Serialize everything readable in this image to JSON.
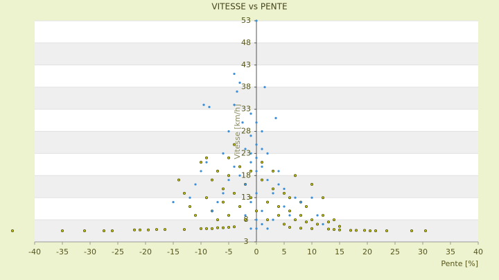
{
  "chart_data": {
    "type": "scatter",
    "title": "VITESSE vs PENTE",
    "x_label": "Pente [%]",
    "y_label": "Vitesse [km/h]",
    "xlim": [
      -40,
      40
    ],
    "ylim": [
      3,
      53
    ],
    "xticks": [
      -40,
      -35,
      -30,
      -25,
      -20,
      -15,
      -10,
      -5,
      0,
      5,
      10,
      15,
      20,
      25,
      30,
      35,
      40
    ],
    "yticks": [
      3,
      8,
      13,
      18,
      23,
      28,
      33,
      38,
      43,
      48,
      53
    ],
    "grid": true,
    "series": [
      {
        "color": "#c8c800",
        "x": [
          -44,
          -35,
          -31,
          -27.5,
          -26,
          -22,
          -21,
          -19.5,
          -18,
          -16.5,
          -13,
          -10,
          -9,
          -8,
          -7,
          -6,
          -5,
          -4,
          6,
          8,
          10,
          13,
          14,
          15,
          17,
          18,
          19.5,
          20.5,
          21.5,
          23.5,
          28,
          30.5,
          -14,
          -13,
          -12,
          -11,
          -10,
          -9,
          -9,
          -8,
          -8,
          -7,
          -7,
          -6,
          -6,
          -5,
          -5,
          -5,
          -4,
          -4,
          -3,
          -3,
          -2,
          -2,
          -1,
          -1,
          0,
          1,
          1,
          2,
          2,
          3,
          3,
          4,
          4,
          5,
          5,
          6,
          6,
          7,
          7,
          8,
          8,
          9,
          9,
          10,
          10,
          11,
          12,
          12,
          13,
          14,
          15
        ],
        "values": [
          5.5,
          5.5,
          5.5,
          5.5,
          5.5,
          5.7,
          5.7,
          5.7,
          5.8,
          5.8,
          5.8,
          6,
          6,
          6,
          6.2,
          6.2,
          6.3,
          6.4,
          6.3,
          6.1,
          6,
          5.9,
          5.8,
          5.7,
          5.6,
          5.6,
          5.6,
          5.5,
          5.5,
          5.5,
          5.5,
          5.5,
          17,
          14,
          11,
          9,
          21,
          22,
          13,
          10,
          17,
          8,
          19,
          15,
          12,
          22,
          9,
          18,
          14,
          25,
          11,
          20,
          16,
          8,
          19,
          13,
          10,
          17,
          21,
          12,
          8,
          15,
          19,
          11,
          9,
          14,
          7,
          10,
          13,
          8,
          18,
          9,
          12,
          7.5,
          11,
          8,
          16,
          7,
          9,
          13,
          7.5,
          8,
          6.5
        ]
      },
      {
        "color": "#3a8fd8",
        "x": [
          0,
          -4,
          -3,
          -3.5,
          1.5,
          -4,
          -9.5,
          -8.5,
          -2.5,
          3.5,
          -5,
          -1,
          0,
          -1,
          1,
          0,
          -2,
          2,
          -6,
          -9,
          -10,
          -11,
          -12,
          -15,
          -4,
          -3,
          -2,
          -1,
          0,
          1,
          2,
          3,
          4,
          5,
          6,
          7,
          8,
          10,
          11,
          12,
          -1,
          0,
          1,
          -2,
          0,
          1,
          -1,
          0,
          2,
          3,
          -6,
          -5,
          -7,
          -8,
          4,
          5,
          0,
          -1,
          1
        ],
        "values": [
          53,
          41,
          39,
          37,
          38,
          34,
          34,
          33.5,
          30,
          31,
          28,
          32,
          30,
          27,
          28,
          25,
          24,
          23,
          23,
          21,
          19,
          16,
          13,
          12,
          20,
          18,
          16,
          21,
          19,
          20,
          17,
          14,
          16,
          11,
          9,
          13,
          12,
          13,
          9,
          7,
          12,
          14,
          10,
          9,
          8,
          7,
          6,
          6,
          6,
          8,
          14,
          17,
          12,
          10,
          19,
          15,
          22,
          23,
          24
        ]
      }
    ]
  }
}
